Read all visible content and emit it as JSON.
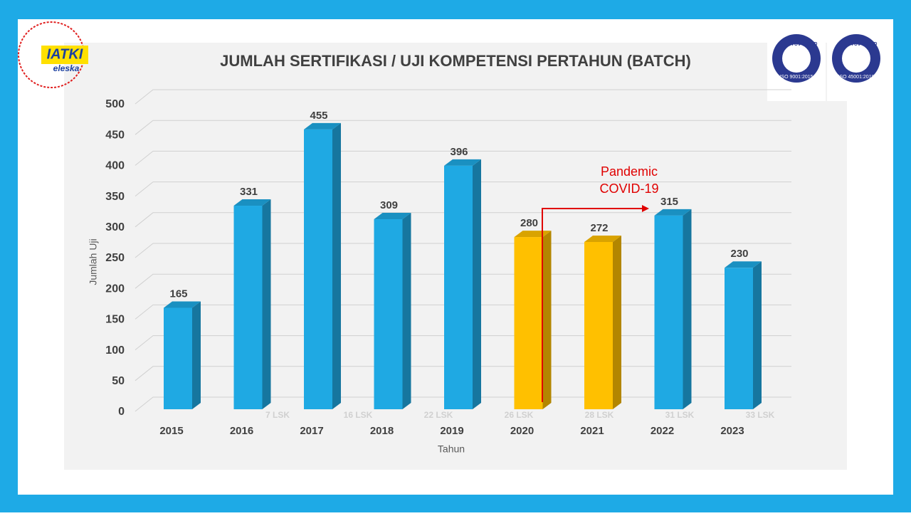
{
  "chart_data": {
    "type": "bar",
    "title": "JUMLAH SERTIFIKASI / UJI KOMPETENSI PERTAHUN  (BATCH)",
    "y_axis_label": "Jumlah Uji",
    "x_axis_label": "Tahun",
    "categories": [
      "2015",
      "2016",
      "2017",
      "2018",
      "2019",
      "2020",
      "2021",
      "2022",
      "2023"
    ],
    "values": [
      165,
      331,
      455,
      309,
      396,
      280,
      272,
      315,
      230
    ],
    "colors": [
      "#1fa9e3",
      "#1fa9e3",
      "#1fa9e3",
      "#1fa9e3",
      "#1fa9e3",
      "#ffc000",
      "#ffc000",
      "#1fa9e3",
      "#1fa9e3"
    ],
    "ylim": [
      0,
      500
    ],
    "yticks": [
      0,
      50,
      100,
      150,
      200,
      250,
      300,
      350,
      400,
      450,
      500
    ],
    "grid": true,
    "lsk_labels": [
      "7 LSK",
      "16 LSK",
      "22 LSK",
      "26 LSK",
      "28 LSK",
      "31 LSK",
      "33 LSK"
    ],
    "annotation": [
      "Pandemic",
      "COVID-19"
    ]
  },
  "logos": {
    "left": [
      "IATKI",
      "eleska"
    ],
    "right": [
      [
        "TÜV NORD",
        "ISO 9001:2015"
      ],
      [
        "TÜV NORD",
        "ISO 45001:2018"
      ]
    ]
  }
}
